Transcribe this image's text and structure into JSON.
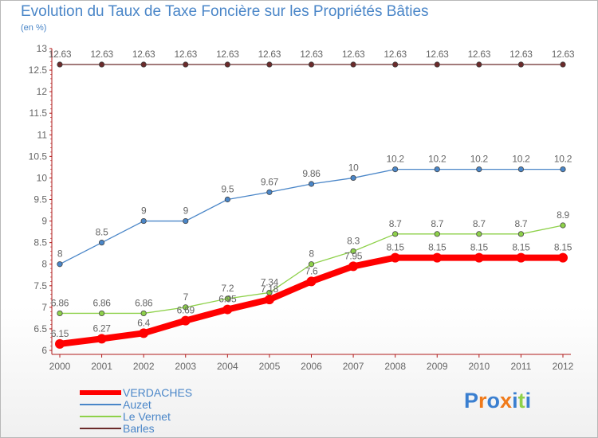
{
  "colors": {
    "verdaches": "#ff0000",
    "auzet": "#4a86c8",
    "levernet": "#8ed14a",
    "barles": "#6b2a2a",
    "text": "#4a86c8"
  },
  "logo": {
    "letters": [
      "P",
      "r",
      "o",
      "x",
      "i",
      "t",
      "i"
    ],
    "colors": [
      "#3a7fd0",
      "#f07a1a",
      "#3a7fd0",
      "#f07a1a",
      "#3a7fd0",
      "#8ed14a",
      "#3a7fd0"
    ]
  },
  "chart_data": {
    "type": "line",
    "title": "Evolution du Taux de Taxe Foncière sur les Propriétés Bâties",
    "subtitle": "(en %)",
    "x": [
      "2000",
      "2001",
      "2002",
      "2003",
      "2004",
      "2005",
      "2006",
      "2007",
      "2008",
      "2009",
      "2010",
      "2011",
      "2012"
    ],
    "ylim": [
      6,
      13
    ],
    "yticks": [
      "6",
      "6.5",
      "7",
      "7.5",
      "8",
      "8.5",
      "9",
      "9.5",
      "10",
      "10.5",
      "11",
      "11.5",
      "12",
      "12.5",
      "13"
    ],
    "grid": false,
    "legend_position": "bottom-left",
    "series": [
      {
        "name": "VERDACHES",
        "values": [
          6.15,
          6.27,
          6.4,
          6.69,
          6.95,
          7.18,
          7.6,
          7.95,
          8.15,
          8.15,
          8.15,
          8.15,
          8.15
        ],
        "labels": [
          "6.15",
          "6.27",
          "6.4",
          "6.69",
          "6.95",
          "7.18",
          "7.6",
          "7.95",
          "8.15",
          "8.15",
          "8.15",
          "8.15",
          "8.15"
        ]
      },
      {
        "name": "Auzet",
        "values": [
          8,
          8.5,
          9,
          9,
          9.5,
          9.67,
          9.86,
          10,
          10.2,
          10.2,
          10.2,
          10.2,
          10.2
        ],
        "labels": [
          "8",
          "8.5",
          "9",
          "9",
          "9.5",
          "9.67",
          "9.86",
          "10",
          "10.2",
          "10.2",
          "10.2",
          "10.2",
          "10.2"
        ]
      },
      {
        "name": "Le Vernet",
        "values": [
          6.86,
          6.86,
          6.86,
          7,
          7.2,
          7.34,
          8,
          8.3,
          8.7,
          8.7,
          8.7,
          8.7,
          8.9
        ],
        "labels": [
          "6.86",
          "6.86",
          "6.86",
          "7",
          "7.2",
          "7.34",
          "8",
          "8.3",
          "8.7",
          "8.7",
          "8.7",
          "8.7",
          "8.9"
        ]
      },
      {
        "name": "Barles",
        "values": [
          12.63,
          12.63,
          12.63,
          12.63,
          12.63,
          12.63,
          12.63,
          12.63,
          12.63,
          12.63,
          12.63,
          12.63,
          12.63
        ],
        "labels": [
          "12.63",
          "12.63",
          "12.63",
          "12.63",
          "12.63",
          "12.63",
          "12.63",
          "12.63",
          "12.63",
          "12.63",
          "12.63",
          "12.63",
          "12.63"
        ]
      }
    ]
  }
}
